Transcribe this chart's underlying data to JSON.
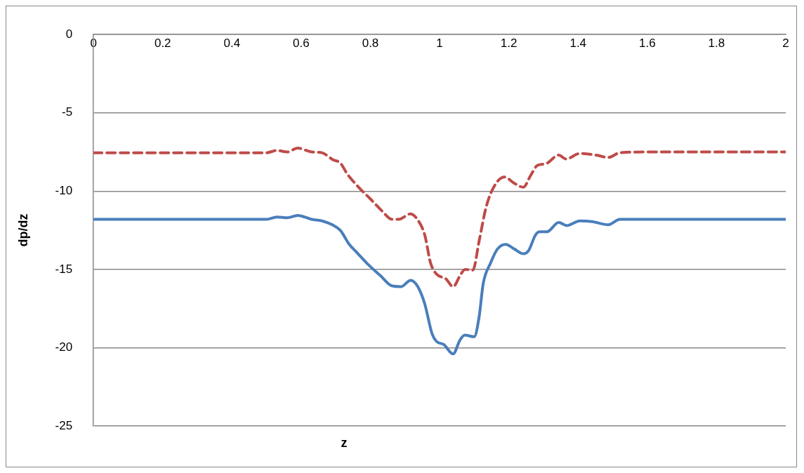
{
  "chart_data": {
    "type": "line",
    "xlabel": "z",
    "ylabel": "dp/dz",
    "xlim": [
      0,
      2
    ],
    "xticks": [
      0,
      0.2,
      0.4,
      0.6,
      0.8,
      1,
      1.2,
      1.4,
      1.6,
      1.8,
      2
    ],
    "ylim": [
      -25,
      0
    ],
    "yticks": [
      0,
      -5,
      -10,
      -15,
      -20,
      -25
    ],
    "grid": "y",
    "legend": false,
    "marker": "none",
    "series": [
      {
        "color": "#4a7ebb",
        "line_style": "solid",
        "x": [
          0,
          0.25,
          0.5,
          0.53,
          0.56,
          0.59,
          0.63,
          0.66,
          0.69,
          0.713,
          0.739,
          0.76,
          0.794,
          0.829,
          0.862,
          0.889,
          0.916,
          0.937,
          0.957,
          0.978,
          0.991,
          1.012,
          1.039,
          1.059,
          1.073,
          1.1,
          1.114,
          1.126,
          1.147,
          1.167,
          1.191,
          1.216,
          1.242,
          1.257,
          1.277,
          1.289,
          1.31,
          1.344,
          1.368,
          1.405,
          1.44,
          1.487,
          1.521,
          1.61,
          1.8,
          2
        ],
        "values": [
          -11.8,
          -11.8,
          -11.8,
          -11.65,
          -11.7,
          -11.55,
          -11.8,
          -11.9,
          -12.15,
          -12.5,
          -13.4,
          -13.9,
          -14.7,
          -15.4,
          -16.05,
          -16.1,
          -15.7,
          -16.1,
          -17.2,
          -19.1,
          -19.6,
          -19.8,
          -20.4,
          -19.5,
          -19.2,
          -19.3,
          -18.05,
          -15.9,
          -14.6,
          -13.7,
          -13.4,
          -13.7,
          -14,
          -13.8,
          -12.8,
          -12.6,
          -12.6,
          -12,
          -12.2,
          -11.9,
          -11.95,
          -12.15,
          -11.8,
          -11.8,
          -11.8,
          -11.8
        ]
      },
      {
        "color": "#be4b48",
        "line_style": "dashed",
        "x": [
          0,
          0.25,
          0.5,
          0.53,
          0.56,
          0.59,
          0.63,
          0.66,
          0.692,
          0.713,
          0.733,
          0.768,
          0.8,
          0.835,
          0.862,
          0.882,
          0.916,
          0.937,
          0.957,
          0.974,
          0.991,
          1.018,
          1.039,
          1.059,
          1.073,
          1.096,
          1.114,
          1.134,
          1.155,
          1.187,
          1.216,
          1.242,
          1.263,
          1.283,
          1.307,
          1.344,
          1.365,
          1.405,
          1.452,
          1.487,
          1.521,
          1.6,
          1.8,
          2
        ],
        "values": [
          -7.55,
          -7.55,
          -7.55,
          -7.4,
          -7.5,
          -7.25,
          -7.5,
          -7.55,
          -8,
          -8.2,
          -8.9,
          -9.8,
          -10.5,
          -11.3,
          -11.8,
          -11.8,
          -11.45,
          -11.85,
          -12.8,
          -14.6,
          -15.3,
          -15.6,
          -16.1,
          -15.4,
          -15,
          -15.05,
          -13.2,
          -11.05,
          -9.8,
          -9.1,
          -9.5,
          -9.75,
          -9,
          -8.35,
          -8.25,
          -7.7,
          -7.95,
          -7.6,
          -7.7,
          -7.85,
          -7.55,
          -7.5,
          -7.5,
          -7.5
        ]
      }
    ]
  }
}
